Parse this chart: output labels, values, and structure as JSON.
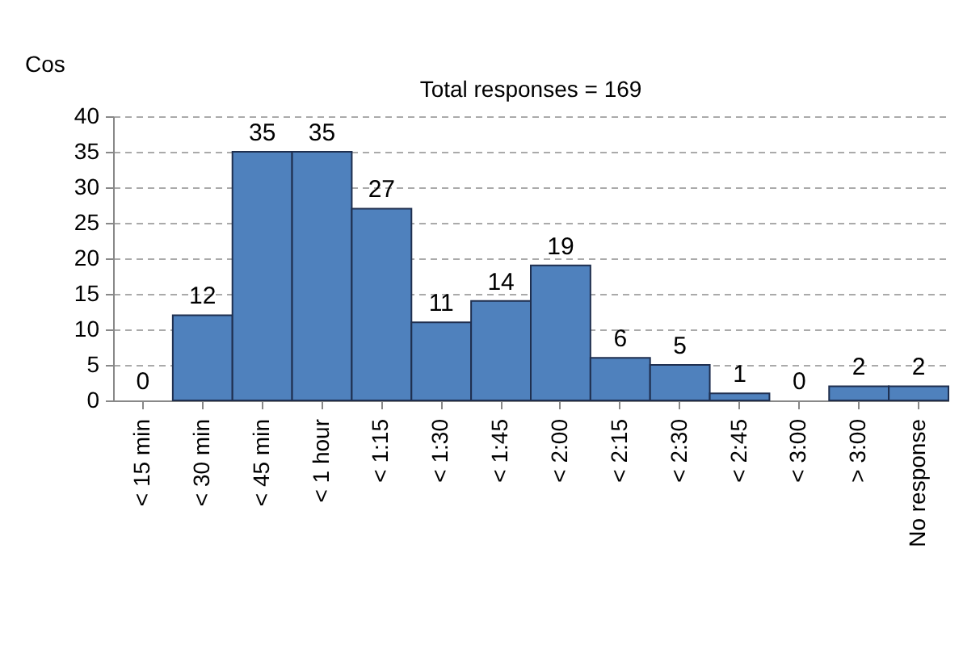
{
  "chart_data": {
    "type": "bar",
    "title": "Total responses = 169",
    "ylabel": "Cos",
    "categories": [
      "< 15 min",
      "< 30 min",
      "< 45 min",
      "< 1 hour",
      "< 1:15",
      "< 1:30",
      "< 1:45",
      "< 2:00",
      "< 2:15",
      "< 2:30",
      "< 2:45",
      "< 3:00",
      "> 3:00",
      "No response"
    ],
    "values": [
      0,
      12,
      35,
      35,
      27,
      11,
      14,
      19,
      6,
      5,
      1,
      0,
      2,
      2
    ],
    "color": "#4f81bd",
    "ylim": [
      0,
      40
    ],
    "yticks": [
      0,
      5,
      10,
      15,
      20,
      25,
      30,
      35,
      40
    ],
    "grid": "y",
    "data_labels": true
  }
}
